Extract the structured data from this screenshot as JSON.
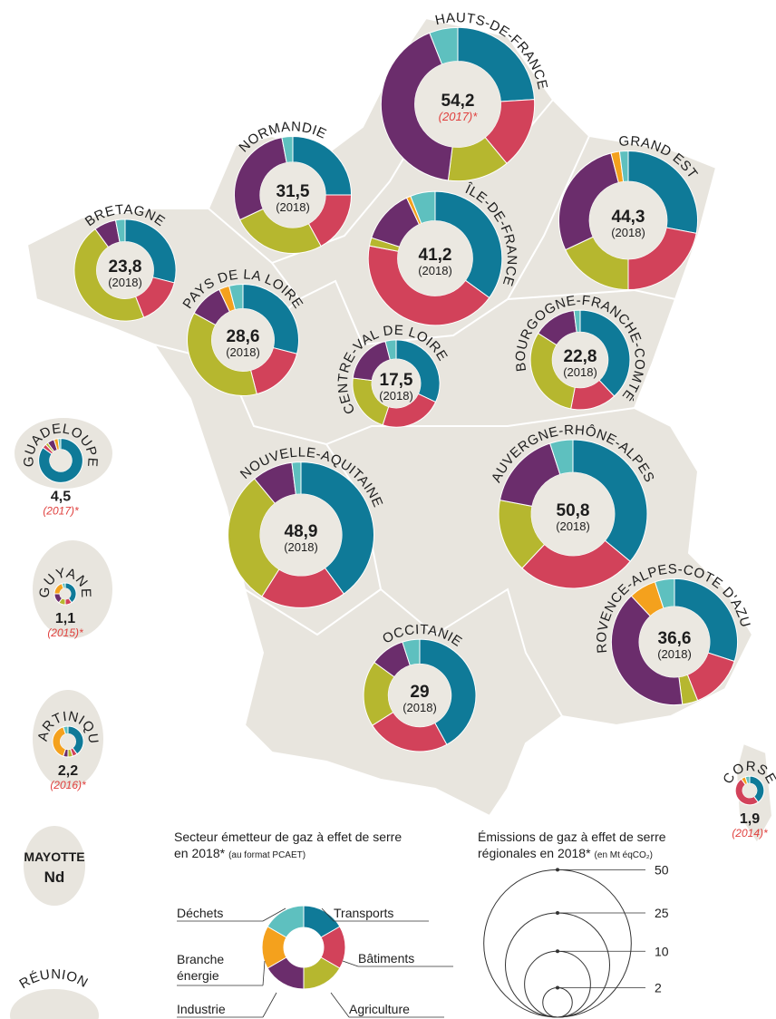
{
  "sectors": [
    {
      "name": "Transports",
      "color": "#0f7a98"
    },
    {
      "name": "Bâtiments",
      "color": "#d2425a"
    },
    {
      "name": "Agriculture",
      "color": "#b6b72f"
    },
    {
      "name": "Industrie",
      "color": "#6b2d6c"
    },
    {
      "name": "Branche énergie",
      "color": "#f4a11d"
    },
    {
      "name": "Déchets",
      "color": "#5ec0bf"
    }
  ],
  "regions": [
    {
      "name": "HAUTS-DE-FRANCE",
      "value": 54.2,
      "value_label": "54,2",
      "year": "(2017)*",
      "shares": [
        24,
        15,
        13,
        42,
        0,
        6
      ]
    },
    {
      "name": "NORMANDIE",
      "value": 31.5,
      "value_label": "31,5",
      "year": "(2018)",
      "shares": [
        25,
        17,
        26,
        29,
        0,
        3
      ]
    },
    {
      "name": "BRETAGNE",
      "value": 23.8,
      "value_label": "23,8",
      "year": "(2018)",
      "shares": [
        29,
        15,
        46,
        7,
        0,
        3
      ]
    },
    {
      "name": "ÎLE-DE-FRANCE",
      "value": 41.2,
      "value_label": "41,2",
      "year": "(2018)",
      "shares": [
        35,
        43,
        2,
        13,
        1,
        6
      ]
    },
    {
      "name": "GRAND EST",
      "value": 44.3,
      "value_label": "44,3",
      "year": "(2018)",
      "shares": [
        28,
        22,
        18,
        28,
        2,
        2
      ]
    },
    {
      "name": "PAYS DE LA LOIRE",
      "value": 28.6,
      "value_label": "28,6",
      "year": "(2018)",
      "shares": [
        29,
        17,
        37,
        10,
        3,
        4
      ]
    },
    {
      "name": "CENTRE-VAL DE LOIRE",
      "value": 17.5,
      "value_label": "17,5",
      "year": "(2018)",
      "shares": [
        32,
        23,
        22,
        19,
        0,
        4
      ]
    },
    {
      "name": "BOURGOGNE-FRANCHE-COMTÉ",
      "value": 22.8,
      "value_label": "22,8",
      "year": "(2018)",
      "shares": [
        38,
        15,
        31,
        14,
        0,
        2
      ]
    },
    {
      "name": "GUADELOUPE",
      "value": 4.5,
      "value_label": "4,5",
      "year": "(2017)*",
      "shares": [
        85,
        3,
        2,
        5,
        3,
        2
      ]
    },
    {
      "name": "AUVERGNE-RHÔNE-ALPES",
      "value": 50.8,
      "value_label": "50,8",
      "year": "(2018)",
      "shares": [
        36,
        26,
        16,
        17,
        0,
        5
      ]
    },
    {
      "name": "NOUVELLE-AQUITAINE",
      "value": 48.9,
      "value_label": "48,9",
      "year": "(2018)",
      "shares": [
        40,
        19,
        30,
        9,
        0,
        2
      ]
    },
    {
      "name": "GUYANE",
      "value": 1.1,
      "value_label": "1,1",
      "year": "(2015)*",
      "shares": [
        40,
        10,
        10,
        15,
        20,
        5
      ]
    },
    {
      "name": "OCCITANIE",
      "value": 29,
      "year": "(2018)",
      "shares": [
        42,
        24,
        19,
        10,
        0,
        5
      ]
    },
    {
      "name": "PROVENCE-ALPES-COTE D'AZUR",
      "value": 36.6,
      "value_label": "36,6",
      "year": "(2018)",
      "shares": [
        30,
        14,
        4,
        40,
        7,
        5
      ]
    },
    {
      "name": "MARTINIQUE",
      "value": 2.2,
      "value_label": "2,2",
      "year": "(2016)*",
      "shares": [
        40,
        5,
        5,
        5,
        40,
        5
      ]
    },
    {
      "name": "CORSE",
      "value": 1.9,
      "value_label": "1,9",
      "year": "(2014)*",
      "shares": [
        40,
        50,
        0,
        0,
        5,
        5
      ]
    }
  ],
  "mayotte": {
    "name": "MAYOTTE",
    "value": "Nd"
  },
  "reunion": {
    "name": "RÉUNION"
  },
  "legend_sectors": {
    "title": "Secteur émetteur de gaz à effet de serre",
    "title_2": "en 2018*",
    "note": "(au format PCAET)"
  },
  "legend_size": {
    "title": "Émissions de gaz à effet de serre",
    "title_2": "régionales en 2018*",
    "note": "(en Mt éqCO₂)",
    "values": [
      50,
      25,
      10,
      2
    ]
  }
}
